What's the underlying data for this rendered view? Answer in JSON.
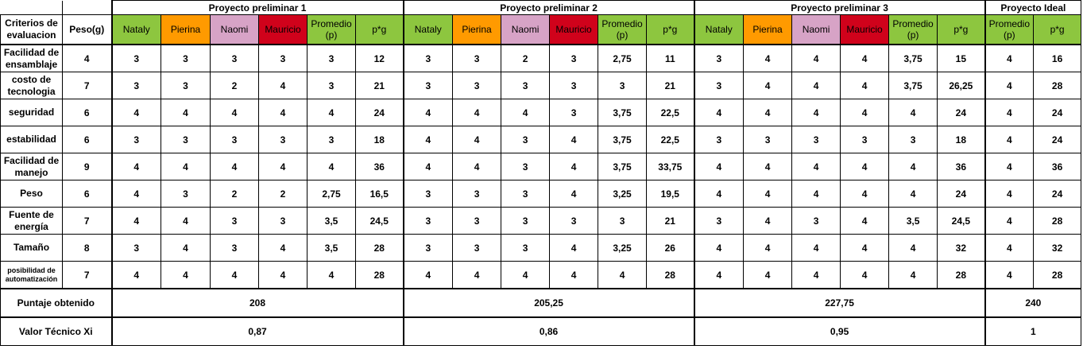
{
  "projects": [
    {
      "title": "Proyecto preliminar 1"
    },
    {
      "title": "Proyecto preliminar 2"
    },
    {
      "title": "Proyecto preliminar 3"
    },
    {
      "title": "Proyecto Ideal"
    }
  ],
  "header": {
    "criterios": "Criterios de evaluacion",
    "peso": "Peso(g)",
    "evaluators": [
      "Nataly",
      "Pierina",
      "Naomi",
      "Mauricio"
    ],
    "promedio": "Promedio (p)",
    "pg": "p*g"
  },
  "colors": {
    "header_green": "#8dc63f",
    "nataly": "#8dc63f",
    "pierina": "#ff9a00",
    "naomi": "#d7a3c6",
    "mauricio": "#d0021b"
  },
  "rows": [
    {
      "criterion": "Facilidad de ensamblaje",
      "peso": "4",
      "p1": [
        "3",
        "3",
        "3",
        "3",
        "3",
        "12"
      ],
      "p2": [
        "3",
        "3",
        "2",
        "3",
        "2,75",
        "11"
      ],
      "p3": [
        "3",
        "4",
        "4",
        "4",
        "3,75",
        "15"
      ],
      "ideal": [
        "4",
        "16"
      ]
    },
    {
      "criterion": "costo de tecnologia",
      "peso": "7",
      "p1": [
        "3",
        "3",
        "2",
        "4",
        "3",
        "21"
      ],
      "p2": [
        "3",
        "3",
        "3",
        "3",
        "3",
        "21"
      ],
      "p3": [
        "3",
        "4",
        "4",
        "4",
        "3,75",
        "26,25"
      ],
      "ideal": [
        "4",
        "28"
      ]
    },
    {
      "criterion": "seguridad",
      "peso": "6",
      "p1": [
        "4",
        "4",
        "4",
        "4",
        "4",
        "24"
      ],
      "p2": [
        "4",
        "4",
        "4",
        "3",
        "3,75",
        "22,5"
      ],
      "p3": [
        "4",
        "4",
        "4",
        "4",
        "4",
        "24"
      ],
      "ideal": [
        "4",
        "24"
      ]
    },
    {
      "criterion": "estabilidad",
      "peso": "6",
      "p1": [
        "3",
        "3",
        "3",
        "3",
        "3",
        "18"
      ],
      "p2": [
        "4",
        "4",
        "3",
        "4",
        "3,75",
        "22,5"
      ],
      "p3": [
        "3",
        "3",
        "3",
        "3",
        "3",
        "18"
      ],
      "ideal": [
        "4",
        "24"
      ]
    },
    {
      "criterion": "Facilidad de manejo",
      "peso": "9",
      "p1": [
        "4",
        "4",
        "4",
        "4",
        "4",
        "36"
      ],
      "p2": [
        "4",
        "4",
        "3",
        "4",
        "3,75",
        "33,75"
      ],
      "p3": [
        "4",
        "4",
        "4",
        "4",
        "4",
        "36"
      ],
      "ideal": [
        "4",
        "36"
      ]
    },
    {
      "criterion": "Peso",
      "peso": "6",
      "p1": [
        "4",
        "3",
        "2",
        "2",
        "2,75",
        "16,5"
      ],
      "p2": [
        "3",
        "3",
        "3",
        "4",
        "3,25",
        "19,5"
      ],
      "p3": [
        "4",
        "4",
        "4",
        "4",
        "4",
        "24"
      ],
      "ideal": [
        "4",
        "24"
      ]
    },
    {
      "criterion": "Fuente de energía",
      "peso": "7",
      "p1": [
        "4",
        "4",
        "3",
        "3",
        "3,5",
        "24,5"
      ],
      "p2": [
        "3",
        "3",
        "3",
        "3",
        "3",
        "21"
      ],
      "p3": [
        "3",
        "4",
        "3",
        "4",
        "3,5",
        "24,5"
      ],
      "ideal": [
        "4",
        "28"
      ]
    },
    {
      "criterion": "Tamaño",
      "peso": "8",
      "p1": [
        "3",
        "4",
        "3",
        "4",
        "3,5",
        "28"
      ],
      "p2": [
        "3",
        "3",
        "3",
        "4",
        "3,25",
        "26"
      ],
      "p3": [
        "4",
        "4",
        "4",
        "4",
        "4",
        "32"
      ],
      "ideal": [
        "4",
        "32"
      ]
    },
    {
      "criterion": "posibilidad de automatización",
      "peso": "7",
      "p1": [
        "4",
        "4",
        "4",
        "4",
        "4",
        "28"
      ],
      "p2": [
        "4",
        "4",
        "4",
        "4",
        "4",
        "28"
      ],
      "p3": [
        "4",
        "4",
        "4",
        "4",
        "4",
        "28"
      ],
      "ideal": [
        "4",
        "28"
      ]
    }
  ],
  "totals": {
    "puntaje_label": "Puntaje obtenido",
    "puntaje": [
      "208",
      "205,25",
      "227,75",
      "240"
    ],
    "valor_label": "Valor Técnico Xi",
    "valor": [
      "0,87",
      "0,86",
      "0,95",
      "1"
    ]
  }
}
